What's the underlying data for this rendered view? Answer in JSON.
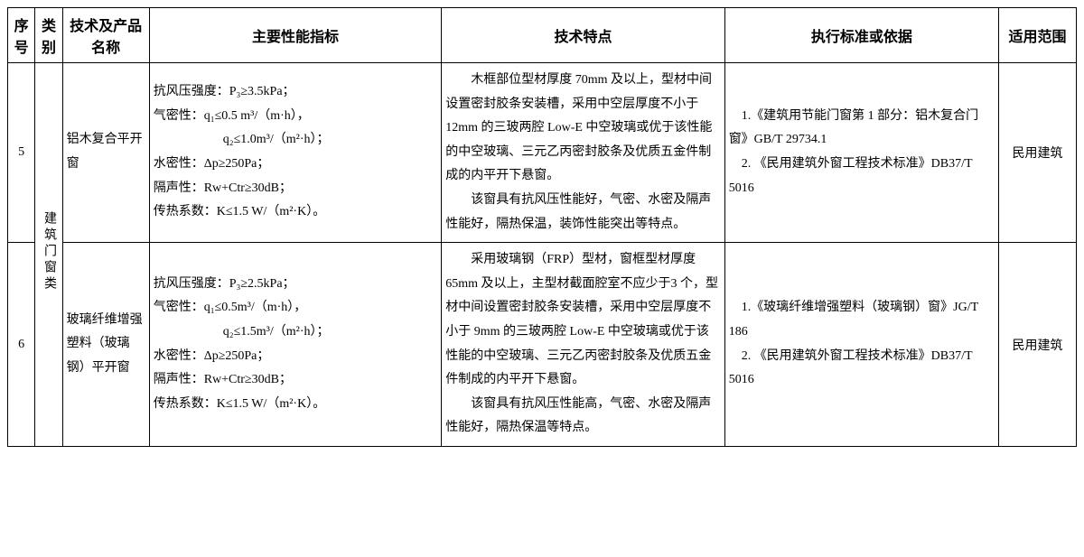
{
  "table": {
    "headers": {
      "seq": "序号",
      "cat": "类别",
      "name": "技术及产品名称",
      "perf": "主要性能指标",
      "feat": "技术特点",
      "std": "执行标准或依据",
      "scope": "适用范围"
    },
    "category_label": "建筑门窗类",
    "rows": [
      {
        "seq": "5",
        "name": "铝木复合平开窗",
        "perf_l1": "抗风压强度：P₃≥3.5kPa；",
        "perf_l2": "气密性：q₁≤0.5 m³/（m·h），",
        "perf_l3": "q₂≤1.0m³/（m²·h）；",
        "perf_l4": "水密性：Δp≥250Pa；",
        "perf_l5": "隔声性：Rw+Ctr≥30dB；",
        "perf_l6": "传热系数：K≤1.5 W/（m²·K）。",
        "feat_p1": "木框部位型材厚度 70mm 及以上，型材中间设置密封胶条安装槽，采用中空层厚度不小于 12mm 的三玻两腔 Low-E 中空玻璃或优于该性能的中空玻璃、三元乙丙密封胶条及优质五金件制成的内平开下悬窗。",
        "feat_p2": "该窗具有抗风压性能好，气密、水密及隔声性能好，隔热保温，装饰性能突出等特点。",
        "std_l1": "1.《建筑用节能门窗第 1 部分：铝木复合门窗》GB/T 29734.1",
        "std_l2": "2. 《民用建筑外窗工程技术标准》DB37/T 5016",
        "scope": "民用建筑"
      },
      {
        "seq": "6",
        "name": "玻璃纤维增强塑料（玻璃钢）平开窗",
        "perf_l1": "抗风压强度：P₃≥2.5kPa；",
        "perf_l2": "气密性：q₁≤0.5m³/（m·h），",
        "perf_l3": "q₂≤1.5m³/（m²·h）；",
        "perf_l4": "水密性：Δp≥250Pa；",
        "perf_l5": "隔声性：Rw+Ctr≥30dB；",
        "perf_l6": "传热系数：K≤1.5 W/（m²·K）。",
        "feat_p1": "采用玻璃钢（FRP）型材，窗框型材厚度65mm 及以上，主型材截面腔室不应少于3 个，型材中间设置密封胶条安装槽，采用中空层厚度不小于 9mm 的三玻两腔 Low-E 中空玻璃或优于该性能的中空玻璃、三元乙丙密封胶条及优质五金件制成的内平开下悬窗。",
        "feat_p2": "该窗具有抗风压性能高，气密、水密及隔声性能好，隔热保温等特点。",
        "std_l1": "1.《玻璃纤维增强塑料（玻璃钢）窗》JG/T 186",
        "std_l2": "2. 《民用建筑外窗工程技术标准》DB37/T 5016",
        "scope": "民用建筑"
      }
    ]
  },
  "style": {
    "border_color": "#000000",
    "background_color": "#ffffff",
    "text_color": "#000000",
    "header_fontsize": 16,
    "body_fontsize": 14,
    "line_height": 1.9
  }
}
